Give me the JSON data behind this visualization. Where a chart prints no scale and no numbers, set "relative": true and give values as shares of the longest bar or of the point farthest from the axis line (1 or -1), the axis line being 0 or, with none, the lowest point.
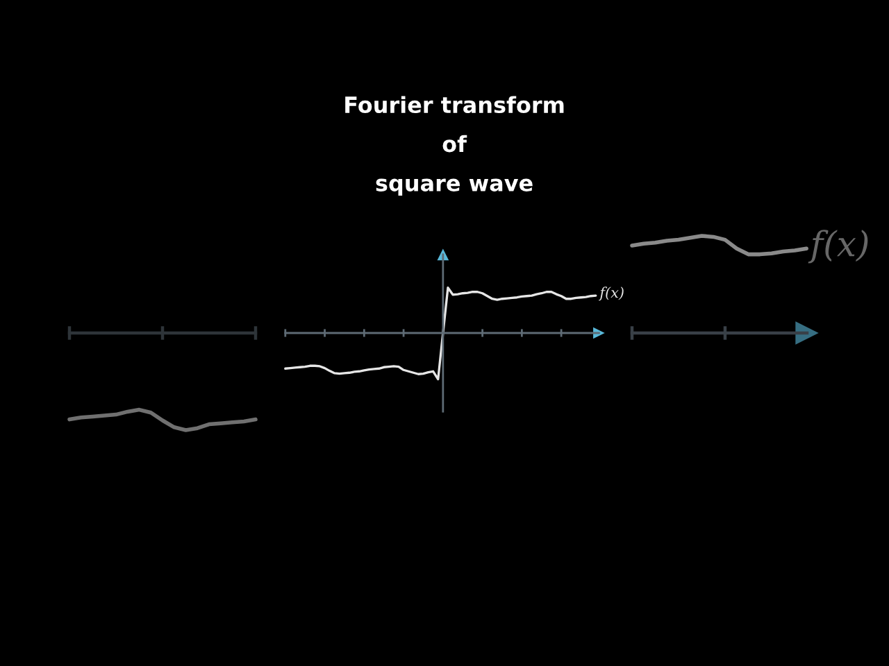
{
  "chart_data": [
    {
      "type": "line",
      "relative": true,
      "categories": [
        null,
        null,
        null,
        null,
        null,
        null,
        null,
        null,
        null,
        null,
        null,
        null,
        null,
        null,
        null,
        null,
        null
      ],
      "series": [
        {
          "color": "#707070",
          "values": [
            -0.89,
            -0.87,
            -0.86,
            -0.85,
            -0.84,
            -0.81,
            -0.79,
            -0.82,
            -0.9,
            -0.97,
            -1.0,
            -0.98,
            -0.94,
            -0.93,
            -0.92,
            -0.91,
            -0.89
          ]
        }
      ],
      "tick_labels": false
    },
    {
      "type": "line",
      "title": "Fourier transform\nof\nsquare wave",
      "relative": true,
      "categories": [
        null,
        null,
        null,
        null,
        null,
        null,
        null,
        null,
        null,
        null,
        null,
        null,
        null,
        null,
        null,
        null,
        null,
        null,
        null,
        null,
        null,
        null,
        null,
        null,
        null,
        null,
        null,
        null,
        null,
        null,
        null,
        null,
        null,
        null,
        null,
        null,
        null,
        null,
        null,
        null,
        null,
        null,
        null,
        null,
        null,
        null,
        null,
        null,
        null,
        null,
        null,
        null,
        null,
        null,
        null,
        null,
        null,
        null,
        null,
        null,
        null,
        null,
        null,
        null
      ],
      "series": [
        {
          "name": "f(x)",
          "color": "#e6e6e6",
          "values": [
            -0.77,
            -0.76,
            -0.75,
            -0.74,
            -0.73,
            -0.71,
            -0.71,
            -0.72,
            -0.76,
            -0.82,
            -0.87,
            -0.88,
            -0.87,
            -0.86,
            -0.84,
            -0.83,
            -0.81,
            -0.79,
            -0.78,
            -0.77,
            -0.74,
            -0.73,
            -0.72,
            -0.73,
            -0.8,
            -0.83,
            -0.86,
            -0.89,
            -0.88,
            -0.85,
            -0.83,
            -1.0,
            0.0,
            0.98,
            0.83,
            0.84,
            0.86,
            0.87,
            0.89,
            0.89,
            0.86,
            0.8,
            0.74,
            0.72,
            0.74,
            0.75,
            0.76,
            0.77,
            0.79,
            0.8,
            0.81,
            0.84,
            0.86,
            0.89,
            0.89,
            0.84,
            0.8,
            0.74,
            0.74,
            0.76,
            0.77,
            0.78,
            0.8,
            0.81
          ]
        }
      ],
      "tick_labels": false
    },
    {
      "type": "line",
      "relative": true,
      "categories": [
        null,
        null,
        null,
        null,
        null,
        null,
        null,
        null,
        null,
        null,
        null,
        null,
        null,
        null,
        null,
        null
      ],
      "series": [
        {
          "name": "f(x)",
          "color": "#8a8a8a",
          "values": [
            0.9,
            0.92,
            0.93,
            0.95,
            0.96,
            0.98,
            1.0,
            0.99,
            0.96,
            0.87,
            0.81,
            0.81,
            0.82,
            0.84,
            0.85,
            0.87
          ]
        }
      ],
      "tick_labels": false
    }
  ]
}
